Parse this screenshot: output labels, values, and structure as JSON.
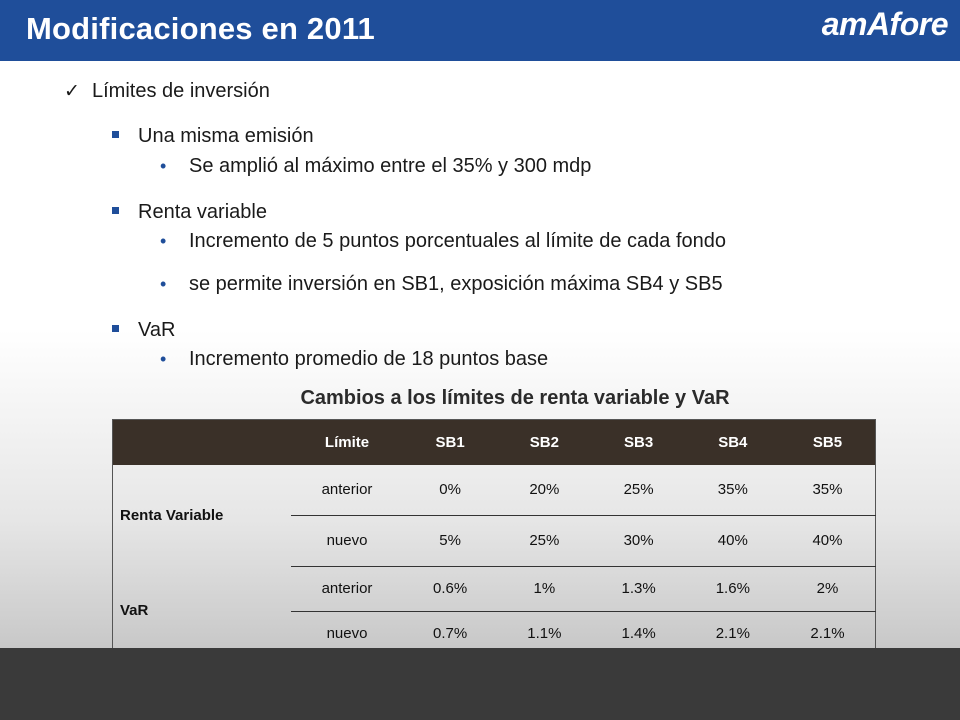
{
  "header": {
    "title": "Modificaciones en 2011",
    "logo": "amAfore"
  },
  "bullets": {
    "level1": "Límites de inversión",
    "sections": [
      {
        "label": "Una misma emisión",
        "items": [
          "Se amplió al máximo entre el 35% y 300 mdp"
        ]
      },
      {
        "label": "Renta variable",
        "items": [
          "Incremento de 5 puntos porcentuales al límite de cada fondo",
          "se permite inversión en SB1, exposición máxima SB4 y SB5"
        ]
      },
      {
        "label": "VaR",
        "items": [
          "Incremento promedio de 18 puntos base"
        ]
      }
    ]
  },
  "table": {
    "title": "Cambios a los límites de renta variable y VaR",
    "headers": [
      "",
      "Límite",
      "SB1",
      "SB2",
      "SB3",
      "SB4",
      "SB5"
    ],
    "groups": [
      {
        "name": "Renta Variable",
        "rows": [
          {
            "label": "anterior",
            "values": [
              "0%",
              "20%",
              "25%",
              "35%",
              "35%"
            ]
          },
          {
            "label": "nuevo",
            "values": [
              "5%",
              "25%",
              "30%",
              "40%",
              "40%"
            ]
          }
        ]
      },
      {
        "name": "VaR",
        "rows": [
          {
            "label": "anterior",
            "values": [
              "0.6%",
              "1%",
              "1.3%",
              "1.6%",
              "2%"
            ]
          },
          {
            "label": "nuevo",
            "values": [
              "0.7%",
              "1.1%",
              "1.4%",
              "2.1%",
              "2.1%"
            ]
          }
        ]
      }
    ]
  }
}
